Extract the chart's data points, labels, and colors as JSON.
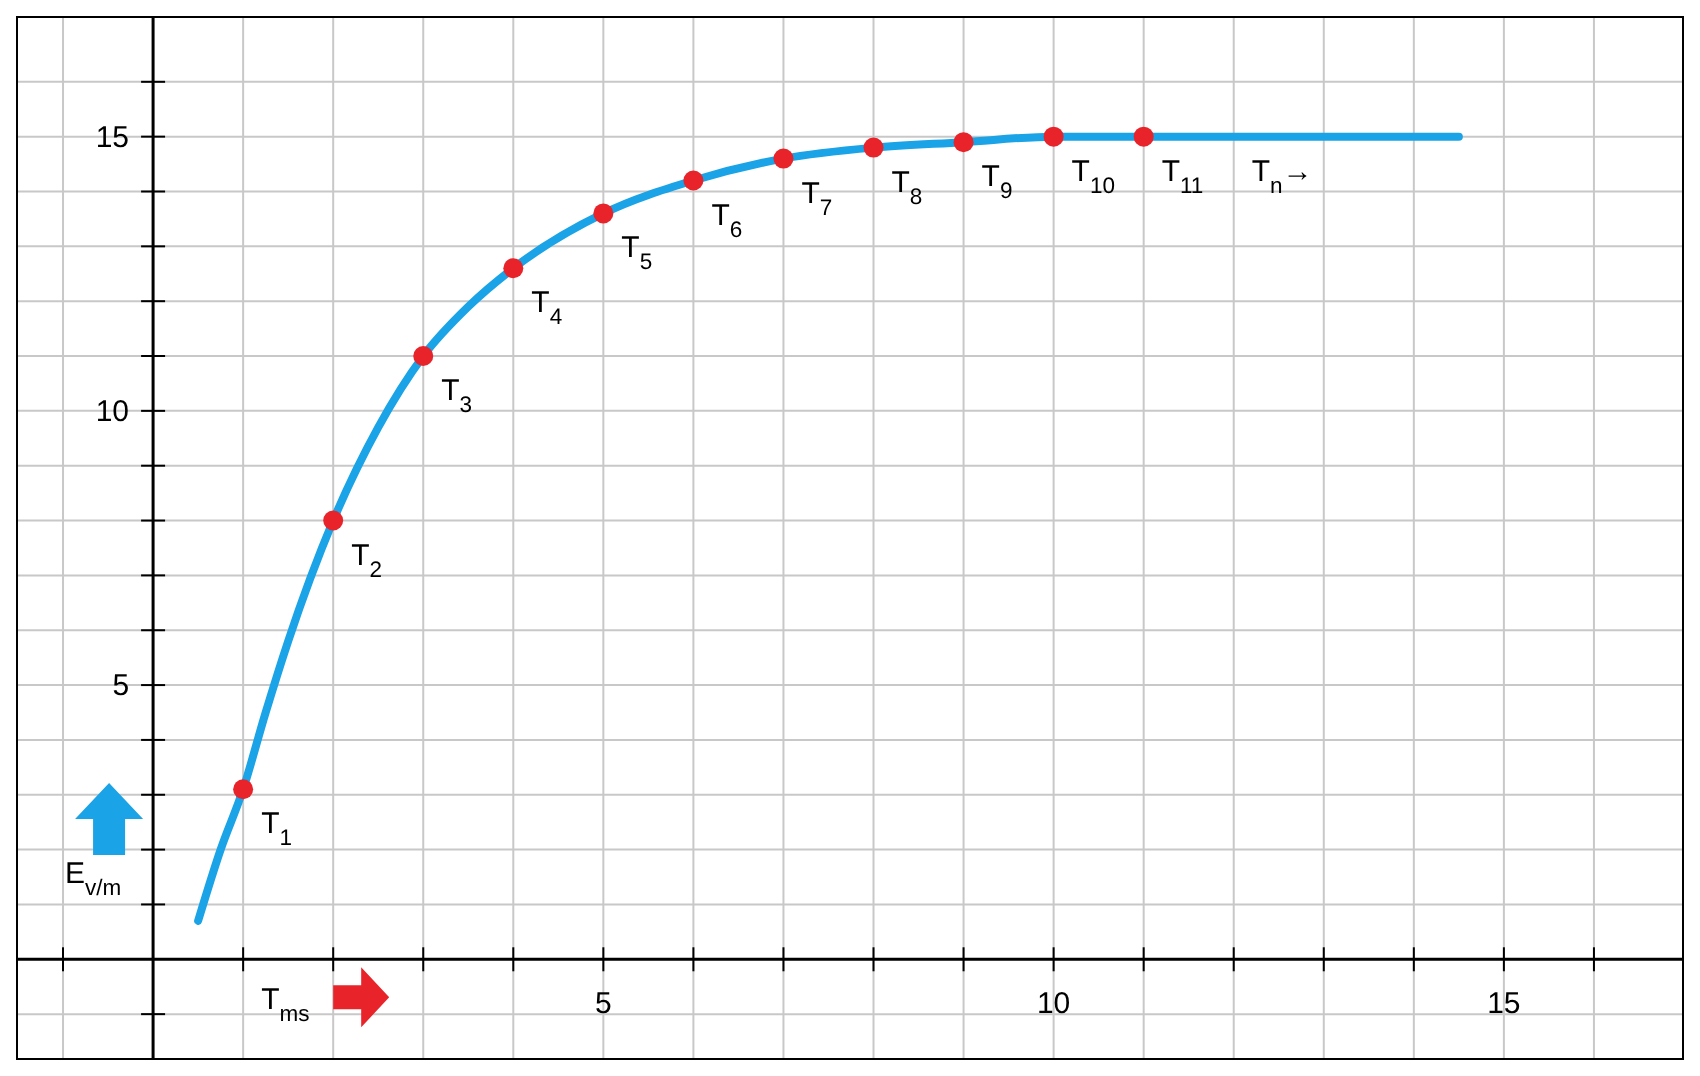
{
  "chart_data": {
    "type": "line",
    "xlabel": "T$_{ms}$",
    "ylabel": "E$_{v/m}$",
    "xlim": [
      -1.5,
      17
    ],
    "ylim": [
      -1.8,
      17.2
    ],
    "xticks": [
      {
        "value": -1,
        "label": null
      },
      {
        "value": 1,
        "label": null
      },
      {
        "value": 2,
        "label": null
      },
      {
        "value": 3,
        "label": null
      },
      {
        "value": 4,
        "label": null
      },
      5,
      {
        "value": 6,
        "label": null
      },
      {
        "value": 7,
        "label": null
      },
      {
        "value": 8,
        "label": null
      },
      {
        "value": 9,
        "label": null
      },
      10,
      {
        "value": 11,
        "label": null
      },
      {
        "value": 12,
        "label": null
      },
      {
        "value": 13,
        "label": null
      },
      {
        "value": 14,
        "label": null
      },
      15,
      {
        "value": 16,
        "label": null
      }
    ],
    "yticks": [
      {
        "value": -1,
        "label": null
      },
      {
        "value": 1,
        "label": null
      },
      {
        "value": 2,
        "label": null
      },
      {
        "value": 3,
        "label": null
      },
      {
        "value": 4,
        "label": null
      },
      5,
      {
        "value": 6,
        "label": null
      },
      {
        "value": 7,
        "label": null
      },
      {
        "value": 8,
        "label": null
      },
      {
        "value": 9,
        "label": null
      },
      10,
      {
        "value": 11,
        "label": null
      },
      {
        "value": 12,
        "label": null
      },
      {
        "value": 13,
        "label": null
      },
      {
        "value": 14,
        "label": null
      },
      15,
      {
        "value": 16,
        "label": null
      }
    ],
    "grid": true,
    "line_style": "solid",
    "series": [
      {
        "marker": "none",
        "color": "#1aa3e6",
        "x": [
          0.5,
          0.75,
          1,
          1.25,
          1.5,
          2,
          2.5,
          3,
          3.5,
          4,
          5,
          6,
          7,
          8,
          9,
          10,
          11,
          12,
          13,
          14.5
        ],
        "values": [
          0.7,
          2.0,
          3.1,
          4.5,
          5.8,
          8.0,
          9.7,
          11.0,
          11.9,
          12.6,
          13.6,
          14.2,
          14.6,
          14.8,
          14.9,
          15.0,
          15.0,
          15.0,
          15.0,
          15.0
        ]
      },
      {
        "type": "scatter",
        "marker": "circle",
        "color": "#e8242a",
        "x": [
          1,
          2,
          3,
          4,
          5,
          6,
          7,
          8,
          9,
          10,
          11
        ],
        "values": [
          3.1,
          8.0,
          11.0,
          12.6,
          13.6,
          14.2,
          14.6,
          14.8,
          14.9,
          15.0,
          15.0
        ]
      }
    ],
    "annotations": [
      {
        "text": "T$_{1}$",
        "x": 1,
        "y": 3.1
      },
      {
        "text": "T$_{2}$",
        "x": 2,
        "y": 8.0
      },
      {
        "text": "T$_{3}$",
        "x": 3,
        "y": 11.0
      },
      {
        "text": "T$_{4}$",
        "x": 4,
        "y": 12.6
      },
      {
        "text": "T$_{5}$",
        "x": 5,
        "y": 13.6
      },
      {
        "text": "T$_{6}$",
        "x": 6,
        "y": 14.2
      },
      {
        "text": "T$_{7}$",
        "x": 7,
        "y": 14.6
      },
      {
        "text": "T$_{8}$",
        "x": 8,
        "y": 14.8
      },
      {
        "text": "T$_{9}$",
        "x": 9,
        "y": 14.9
      },
      {
        "text": "T$_{10}$",
        "x": 10,
        "y": 15.0
      },
      {
        "text": "T$_{11}$",
        "x": 11,
        "y": 15.0
      },
      {
        "text": "T$_{n}$→",
        "x": 12,
        "y": 15.0
      }
    ]
  }
}
